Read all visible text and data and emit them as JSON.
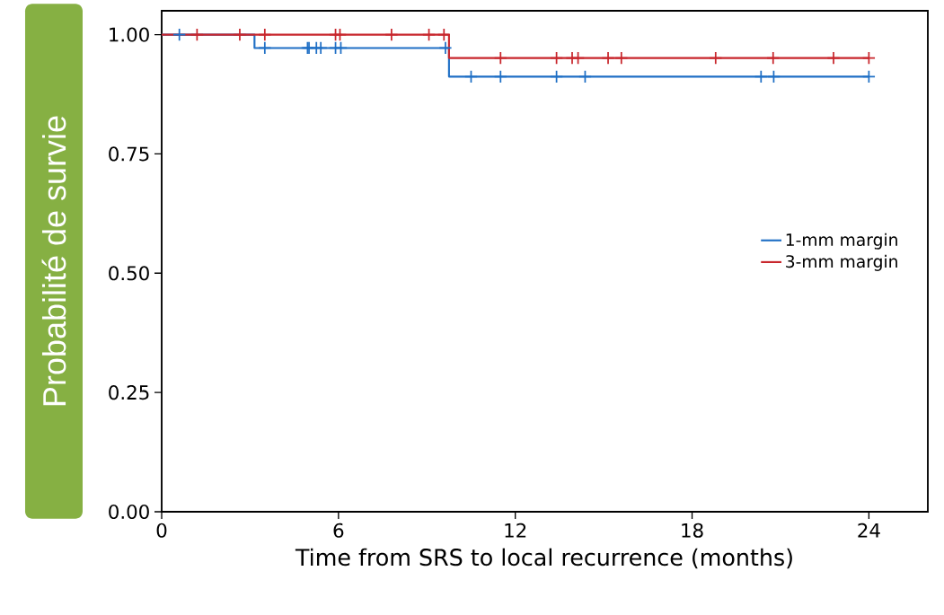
{
  "chart_data": {
    "type": "step",
    "xlabel": "Time from SRS to local recurrence (months)",
    "ylabel": "Probabilité de survie",
    "xlim": [
      0,
      26
    ],
    "xticks": [
      0,
      6,
      12,
      18,
      24
    ],
    "ylim": [
      0,
      1.05
    ],
    "yticks": [
      {
        "value": 0,
        "label": "0.00"
      },
      {
        "value": 0.25,
        "label": "0.25"
      },
      {
        "value": 0.5,
        "label": "0.50"
      },
      {
        "value": 0.75,
        "label": "0.75"
      },
      {
        "value": 1,
        "label": "1.00"
      }
    ],
    "legend": "right",
    "grid": false,
    "series": [
      {
        "name": "1-mm margin",
        "color": "#1f6fc5",
        "x": [
          0,
          3.15,
          9.75,
          24
        ],
        "values": [
          1,
          0.972,
          0.912,
          0.912
        ]
      },
      {
        "name": "3-mm margin",
        "color": "#c8262c",
        "x": [
          0,
          9.75,
          24
        ],
        "values": [
          1,
          0.951,
          0.951
        ]
      },
      {
        "type": "scatter",
        "marker": "cross",
        "color": "#1f6fc5",
        "x": [
          0.6,
          3.5,
          4.95,
          5.0,
          5.25,
          5.4,
          5.9,
          6.08,
          9.63,
          10.5,
          11.5,
          13.4,
          14.37,
          20.34,
          20.77,
          24
        ],
        "values": [
          1,
          0.972,
          0.972,
          0.972,
          0.972,
          0.972,
          0.972,
          0.972,
          0.972,
          0.912,
          0.912,
          0.912,
          0.912,
          0.912,
          0.912,
          0.912
        ]
      },
      {
        "type": "scatter",
        "marker": "cross",
        "color": "#c8262c",
        "x": [
          1.2,
          2.65,
          3.5,
          5.9,
          6.05,
          7.8,
          9.07,
          9.58,
          11.5,
          13.4,
          13.93,
          14.13,
          15.15,
          15.6,
          18.8,
          20.75,
          22.8,
          24
        ],
        "values": [
          1,
          1,
          1,
          1,
          1,
          1,
          1,
          1,
          0.951,
          0.951,
          0.951,
          0.951,
          0.951,
          0.951,
          0.951,
          0.951,
          0.951,
          0.951
        ]
      }
    ]
  }
}
